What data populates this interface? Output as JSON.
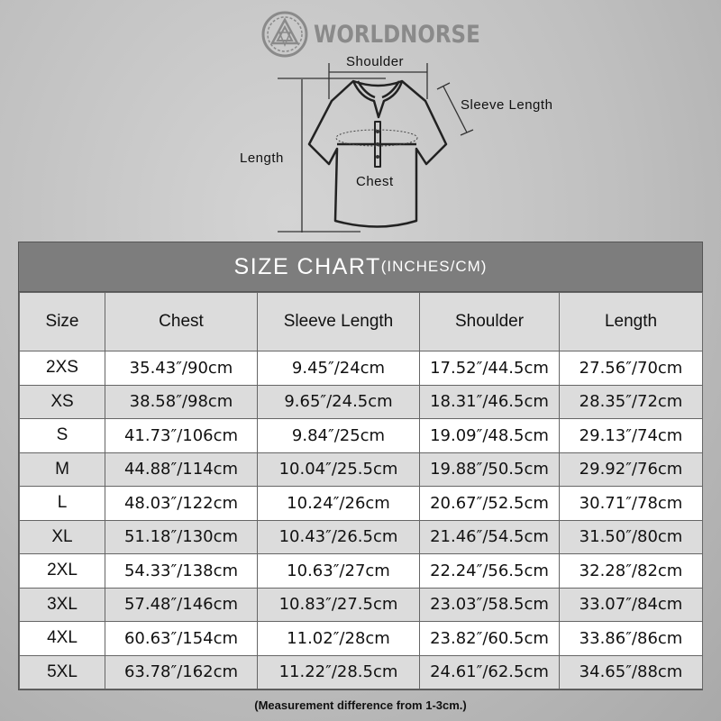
{
  "brand": {
    "name": "WORLDNORSE"
  },
  "diagram": {
    "shoulder_label": "Shoulder",
    "sleeve_label": "Sleeve Length",
    "length_label": "Length",
    "chest_label": "Chest"
  },
  "chart": {
    "title": "SIZE CHART",
    "units": "(INCHES/CM)",
    "headers": [
      "Size",
      "Chest",
      "Sleeve Length",
      "Shoulder",
      "Length"
    ],
    "rows": [
      [
        "2XS",
        "35.43″/90cm",
        "9.45″/24cm",
        "17.52″/44.5cm",
        "27.56″/70cm"
      ],
      [
        "XS",
        "38.58″/98cm",
        "9.65″/24.5cm",
        "18.31″/46.5cm",
        "28.35″/72cm"
      ],
      [
        "S",
        "41.73″/106cm",
        "9.84″/25cm",
        "19.09″/48.5cm",
        "29.13″/74cm"
      ],
      [
        "M",
        "44.88″/114cm",
        "10.04″/25.5cm",
        "19.88″/50.5cm",
        "29.92″/76cm"
      ],
      [
        "L",
        "48.03″/122cm",
        "10.24″/26cm",
        "20.67″/52.5cm",
        "30.71″/78cm"
      ],
      [
        "XL",
        "51.18″/130cm",
        "10.43″/26.5cm",
        "21.46″/54.5cm",
        "31.50″/80cm"
      ],
      [
        "2XL",
        "54.33″/138cm",
        "10.63″/27cm",
        "22.24″/56.5cm",
        "32.28″/82cm"
      ],
      [
        "3XL",
        "57.48″/146cm",
        "10.83″/27.5cm",
        "23.03″/58.5cm",
        "33.07″/84cm"
      ],
      [
        "4XL",
        "60.63″/154cm",
        "11.02″/28cm",
        "23.82″/60.5cm",
        "33.86″/86cm"
      ],
      [
        "5XL",
        "63.78″/162cm",
        "11.22″/28.5cm",
        "24.61″/62.5cm",
        "34.65″/88cm"
      ]
    ],
    "note": "(Measurement difference from 1-3cm.)"
  }
}
